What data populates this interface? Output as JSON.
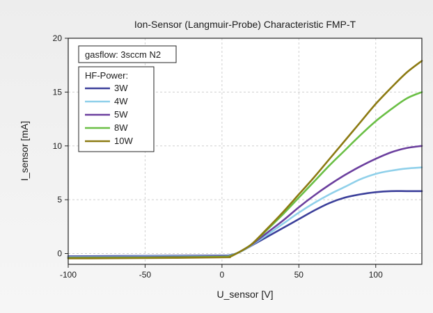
{
  "chart_data": {
    "type": "line",
    "title": "Ion-Sensor (Langmuir-Probe) Characteristic  FMP-T",
    "xlabel": "U_sensor [V]",
    "ylabel": "I_sensor  [mA]",
    "xlim": [
      -100,
      130
    ],
    "ylim": [
      -1,
      20
    ],
    "x_ticks": [
      -100,
      -50,
      0,
      50,
      100
    ],
    "y_ticks": [
      0,
      5,
      10,
      15,
      20
    ],
    "x_tick_labels": [
      "-100",
      "-50",
      "0",
      "50",
      "100"
    ],
    "y_tick_labels": [
      "0",
      "5",
      "10",
      "15",
      "20"
    ],
    "grid": true,
    "annotation": "gasflow: 3sccm N2",
    "legend_title": "HF-Power:",
    "legend_position": "top-left",
    "series": [
      {
        "name": "3W",
        "color": "#3b3f9a",
        "x": [
          -100,
          -50,
          0,
          5,
          10,
          15,
          20,
          30,
          40,
          50,
          60,
          70,
          80,
          90,
          100,
          110,
          120,
          130
        ],
        "y": [
          -0.25,
          -0.22,
          -0.18,
          -0.15,
          0.05,
          0.4,
          0.8,
          1.6,
          2.4,
          3.2,
          4.0,
          4.7,
          5.2,
          5.5,
          5.7,
          5.8,
          5.8,
          5.8
        ]
      },
      {
        "name": "4W",
        "color": "#8fd0ea",
        "x": [
          -100,
          -50,
          0,
          5,
          10,
          15,
          20,
          30,
          40,
          50,
          60,
          70,
          80,
          90,
          100,
          110,
          120,
          130
        ],
        "y": [
          -0.3,
          -0.27,
          -0.22,
          -0.18,
          0.05,
          0.4,
          0.85,
          1.8,
          2.8,
          3.8,
          4.7,
          5.5,
          6.2,
          6.9,
          7.4,
          7.7,
          7.9,
          8.0
        ]
      },
      {
        "name": "5W",
        "color": "#6b3f9e",
        "x": [
          -100,
          -50,
          0,
          5,
          10,
          15,
          20,
          30,
          40,
          50,
          60,
          70,
          80,
          90,
          100,
          110,
          120,
          130
        ],
        "y": [
          -0.35,
          -0.32,
          -0.26,
          -0.22,
          0.05,
          0.45,
          0.9,
          2.0,
          3.1,
          4.3,
          5.4,
          6.4,
          7.3,
          8.1,
          8.8,
          9.4,
          9.8,
          10.0
        ]
      },
      {
        "name": "8W",
        "color": "#6abf45",
        "x": [
          -100,
          -50,
          0,
          5,
          10,
          15,
          20,
          30,
          40,
          50,
          60,
          70,
          80,
          90,
          100,
          110,
          120,
          130
        ],
        "y": [
          -0.4,
          -0.37,
          -0.3,
          -0.25,
          0.05,
          0.45,
          0.95,
          2.3,
          3.7,
          5.2,
          6.7,
          8.2,
          9.6,
          11.0,
          12.3,
          13.4,
          14.4,
          15.0
        ]
      },
      {
        "name": "10W",
        "color": "#8c7a12",
        "x": [
          -100,
          -50,
          0,
          5,
          10,
          15,
          20,
          30,
          40,
          50,
          60,
          70,
          80,
          90,
          100,
          110,
          120,
          130
        ],
        "y": [
          -0.45,
          -0.42,
          -0.35,
          -0.3,
          0.05,
          0.45,
          0.95,
          2.4,
          3.9,
          5.5,
          7.1,
          8.8,
          10.5,
          12.2,
          13.9,
          15.4,
          16.8,
          17.9
        ]
      }
    ]
  }
}
